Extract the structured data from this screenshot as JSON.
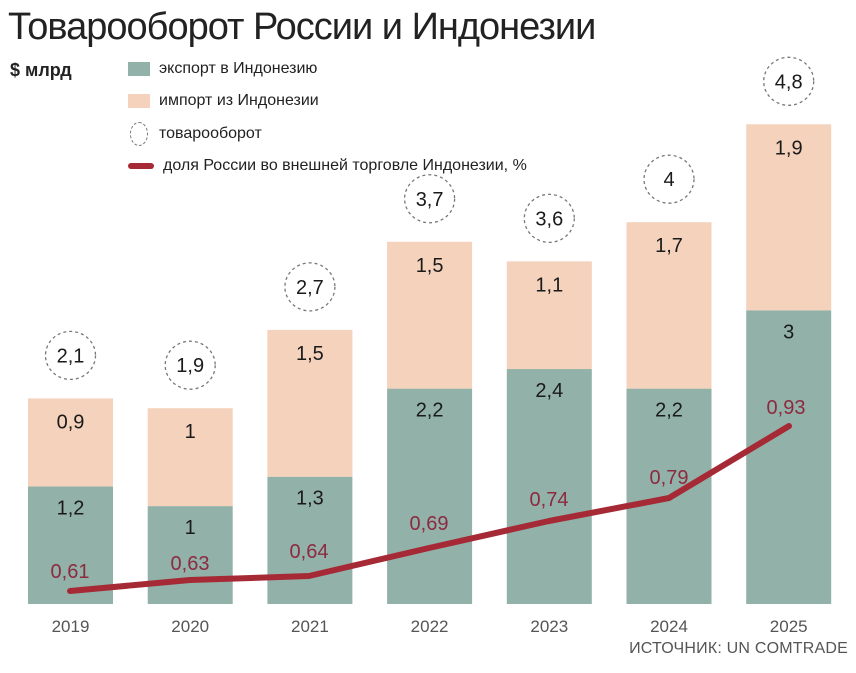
{
  "header": {
    "title": "Товарооборот России и Индонезии",
    "unit": "$ млрд"
  },
  "legend": [
    {
      "key": "export",
      "label": "экспорт в Индонезию",
      "color": "#92b1a9"
    },
    {
      "key": "import",
      "label": "импорт из Индонезии",
      "color": "#f4d2bc"
    },
    {
      "key": "total",
      "label": "товарооборот",
      "color": "#777777"
    },
    {
      "key": "share",
      "label": "доля России во внешней торговле Индонезии, %",
      "color": "#a52a35"
    }
  ],
  "source": "ИСТОЧНИК: UN COMTRADE",
  "chart_data": {
    "type": "bar",
    "subtype": "stacked bar with line overlay",
    "title": "Товарооборот России и Индонезии",
    "ylabel": "$ млрд",
    "xlabel": "",
    "categories": [
      "2019",
      "2020",
      "2021",
      "2022",
      "2023",
      "2024",
      "2025"
    ],
    "series": [
      {
        "name": "экспорт в Индонезию",
        "type": "bar",
        "color": "#92b1a9",
        "values": [
          1.2,
          1.0,
          1.3,
          2.2,
          2.4,
          2.2,
          3.0
        ],
        "labels": [
          "1,2",
          "1",
          "1,3",
          "2,2",
          "2,4",
          "2,2",
          "3"
        ]
      },
      {
        "name": "импорт из Индонезии",
        "type": "bar",
        "color": "#f4d2bc",
        "values": [
          0.9,
          1.0,
          1.5,
          1.5,
          1.1,
          1.7,
          1.9
        ],
        "labels": [
          "0,9",
          "1",
          "1,5",
          "1,5",
          "1,1",
          "1,7",
          "1,9"
        ]
      },
      {
        "name": "товарооборот",
        "type": "annotation",
        "values": [
          2.1,
          1.9,
          2.7,
          3.7,
          3.6,
          4.0,
          4.8
        ],
        "labels": [
          "2,1",
          "1,9",
          "2,7",
          "3,7",
          "3,6",
          "4",
          "4,8"
        ]
      },
      {
        "name": "доля России во внешней торговле Индонезии, %",
        "type": "line",
        "color": "#a52a35",
        "values": [
          0.61,
          0.63,
          0.64,
          0.69,
          0.74,
          0.79,
          0.93
        ],
        "labels": [
          "0,61",
          "0,63",
          "0,64",
          "0,69",
          "0,74",
          "0,79",
          "0,93"
        ]
      }
    ],
    "ylim": [
      0,
      4.8
    ],
    "grid": false,
    "legend_position": "top-left",
    "source": "UN COMTRADE"
  }
}
